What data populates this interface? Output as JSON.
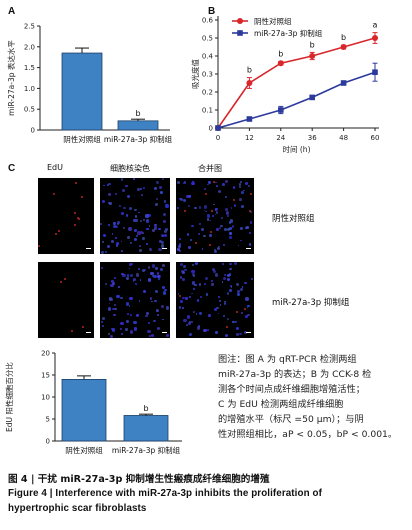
{
  "panels": {
    "a": {
      "letter": "A"
    },
    "b": {
      "letter": "B"
    },
    "c": {
      "letter": "C"
    }
  },
  "chart_data": [
    {
      "type": "bar",
      "panel": "A",
      "categories": [
        "阴性对照组",
        "miR-27a-3p 抑制组"
      ],
      "values": [
        1.85,
        0.22
      ],
      "errors": [
        0.12,
        0.04
      ],
      "significance": [
        "",
        "b"
      ],
      "ylabel": "miR-27a-3p 表达水平",
      "ylim": [
        0,
        2.5
      ],
      "yticks": [
        "0",
        "0.5",
        "1.0",
        "1.5",
        "2.0",
        "2.5"
      ],
      "bar_color": "#3f82c4"
    },
    {
      "type": "line",
      "panel": "B",
      "x": [
        0,
        12,
        24,
        36,
        48,
        60
      ],
      "xticks": [
        "0",
        "12",
        "24",
        "36",
        "48",
        "60"
      ],
      "xlabel": "时间 (h)",
      "ylabel": "吸光度值",
      "ylim": [
        0,
        0.6
      ],
      "yticks": [
        "0",
        "0.1",
        "0.2",
        "0.3",
        "0.4",
        "0.5",
        "0.6"
      ],
      "series": [
        {
          "name": "阴性对照组",
          "values": [
            0,
            0.25,
            0.36,
            0.4,
            0.45,
            0.5
          ],
          "errors": [
            0,
            0.03,
            0.01,
            0.02,
            0.01,
            0.03
          ],
          "color": "#d8262b",
          "marker": "circle"
        },
        {
          "name": "miR-27a-3p 抑制组",
          "values": [
            0,
            0.05,
            0.1,
            0.17,
            0.25,
            0.31
          ],
          "errors": [
            0,
            0.01,
            0.02,
            0.01,
            0.01,
            0.05
          ],
          "color": "#2b3a9b",
          "marker": "square"
        }
      ],
      "annotations": [
        {
          "x": 12,
          "text": "b"
        },
        {
          "x": 24,
          "text": "b"
        },
        {
          "x": 36,
          "text": "b"
        },
        {
          "x": 48,
          "text": "b"
        },
        {
          "x": 60,
          "text": "a"
        }
      ],
      "legend": "top-left"
    },
    {
      "type": "bar",
      "panel": "C",
      "categories": [
        "阴性对照组",
        "miR-27a-3p 抑制组"
      ],
      "values": [
        14,
        5.8
      ],
      "errors": [
        0.8,
        0.3
      ],
      "significance": [
        "",
        "b"
      ],
      "ylabel": "EdU 阳性细胞百分比",
      "ylim": [
        0,
        20
      ],
      "yticks": [
        "0",
        "5",
        "10",
        "15",
        "20"
      ],
      "bar_color": "#3f82c4"
    }
  ],
  "micro": {
    "col_titles": [
      "EdU",
      "细胞核染色",
      "合并图"
    ],
    "row_labels": [
      "阴性对照组",
      "miR-27a-3p 抑制组"
    ]
  },
  "note": {
    "lines": [
      "图注：图 A 为 qRT-PCR 检测两组",
      "miR-27a-3p 的表达；B 为 CCK-8 检",
      "测各个时间点成纤维细胞增殖活性；",
      "C 为 EdU 检测两组成纤维细胞",
      "的增殖水平（标尺 =50 μm）；与阴",
      "性对照组相比，aP < 0.05，bP < 0.001。"
    ]
  },
  "caption": {
    "cn": "图 4 | 干扰 miR-27a-3p 抑制增生性瘢痕成纤维细胞的增殖",
    "en_line1": "Figure 4  |  Interference with miR-27a-3p inhibits the proliferation of",
    "en_line2": "hypertrophic scar fibroblasts"
  }
}
